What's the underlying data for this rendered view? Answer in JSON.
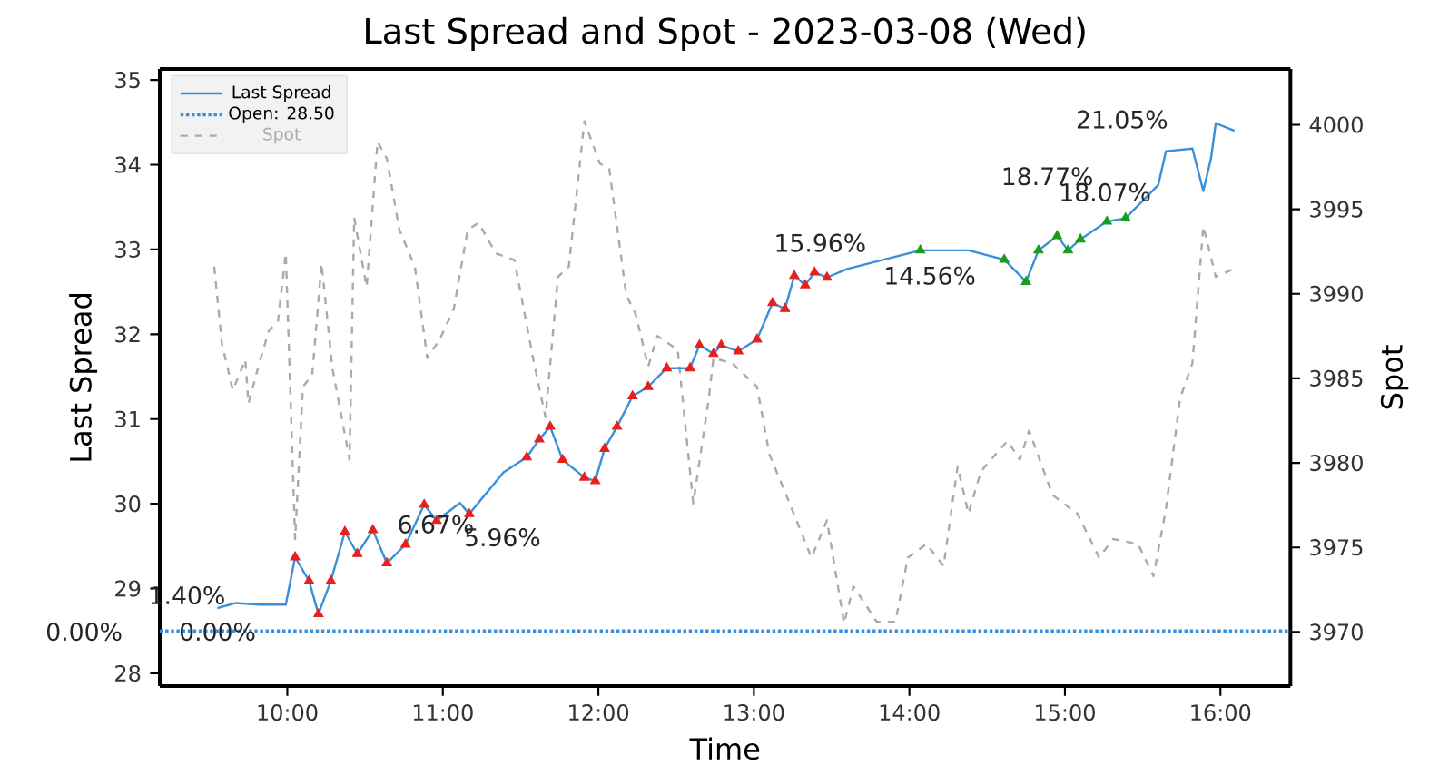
{
  "chart_data": {
    "type": "line",
    "title": "Last Spread and Spot - 2023-03-08 (Wed)",
    "xlabel": "Time",
    "ylabel": "Last Spread",
    "y2label": "Spot",
    "xlim": [
      9.18,
      16.45
    ],
    "xticks": [
      {
        "value": 10,
        "label": "10:00"
      },
      {
        "value": 11,
        "label": "11:00"
      },
      {
        "value": 12,
        "label": "12:00"
      },
      {
        "value": 13,
        "label": "13:00"
      },
      {
        "value": 14,
        "label": "14:00"
      },
      {
        "value": 15,
        "label": "15:00"
      },
      {
        "value": 16,
        "label": "16:00"
      }
    ],
    "ylim": [
      27.85,
      35.13
    ],
    "yticks": [
      28,
      29,
      30,
      31,
      32,
      33,
      34,
      35
    ],
    "y2lim": [
      3966.8,
      4003.3
    ],
    "y2ticks": [
      3970,
      3975,
      3980,
      3985,
      3990,
      3995,
      4000
    ],
    "legend": "top left",
    "grid": false,
    "series": [
      {
        "name": "Last Spread",
        "color": "#3a8fd9",
        "line_style": "solid",
        "x": [
          9.55,
          9.67,
          9.82,
          9.99,
          10.05,
          10.14,
          10.2,
          10.28,
          10.37,
          10.45,
          10.55,
          10.64,
          10.76,
          10.88,
          10.96,
          11.11,
          11.17,
          11.39,
          11.54,
          11.62,
          11.69,
          11.77,
          11.91,
          11.98,
          12.04,
          12.12,
          12.22,
          12.32,
          12.44,
          12.59,
          12.65,
          12.74,
          12.79,
          12.9,
          13.02,
          13.12,
          13.2,
          13.26,
          13.33,
          13.39,
          13.47,
          13.6,
          14.07,
          14.38,
          14.61,
          14.75,
          14.83,
          14.95,
          15.02,
          15.1,
          15.27,
          15.39,
          15.6,
          15.65,
          15.82,
          15.89,
          15.94,
          15.97,
          16.09
        ],
        "values": [
          28.77,
          28.83,
          28.81,
          28.81,
          29.37,
          29.09,
          28.7,
          29.09,
          29.67,
          29.41,
          29.69,
          29.3,
          29.52,
          29.99,
          29.8,
          30.01,
          29.88,
          30.37,
          30.55,
          30.76,
          30.91,
          30.52,
          30.31,
          30.27,
          30.65,
          30.91,
          31.27,
          31.38,
          31.6,
          31.6,
          31.87,
          31.77,
          31.87,
          31.8,
          31.94,
          32.37,
          32.3,
          32.69,
          32.58,
          32.73,
          32.67,
          32.77,
          32.99,
          32.99,
          32.88,
          32.62,
          32.99,
          33.16,
          32.99,
          33.12,
          33.33,
          33.37,
          33.76,
          34.16,
          34.19,
          33.69,
          34.08,
          34.49,
          34.4
        ]
      },
      {
        "type": "scatter",
        "marker": "triangle",
        "color": "#e8201c",
        "x": [
          10.05,
          10.14,
          10.2,
          10.28,
          10.37,
          10.45,
          10.55,
          10.64,
          10.76,
          10.88,
          10.96,
          11.17,
          11.54,
          11.62,
          11.69,
          11.77,
          11.91,
          11.98,
          12.04,
          12.12,
          12.22,
          12.32,
          12.44,
          12.59,
          12.65,
          12.74,
          12.79,
          12.9,
          13.02,
          13.12,
          13.2,
          13.26,
          13.33,
          13.39,
          13.47
        ],
        "values": [
          29.37,
          29.09,
          28.7,
          29.09,
          29.67,
          29.41,
          29.69,
          29.3,
          29.52,
          29.99,
          29.8,
          29.88,
          30.55,
          30.76,
          30.91,
          30.52,
          30.31,
          30.27,
          30.65,
          30.91,
          31.27,
          31.38,
          31.6,
          31.6,
          31.87,
          31.77,
          31.87,
          31.8,
          31.94,
          32.37,
          32.3,
          32.69,
          32.58,
          32.73,
          32.67
        ]
      },
      {
        "type": "scatter",
        "marker": "triangle",
        "color": "#1a9e1a",
        "x": [
          14.07,
          14.61,
          14.75,
          14.83,
          14.95,
          15.02,
          15.1,
          15.27,
          15.39
        ],
        "values": [
          32.99,
          32.88,
          32.62,
          32.99,
          33.16,
          32.99,
          33.12,
          33.33,
          33.37
        ]
      },
      {
        "name": "Spot",
        "type": "line",
        "axis": "y2",
        "color": "#aaaaaa",
        "line_style": "dashed",
        "x": [
          9.53,
          9.58,
          9.65,
          9.73,
          9.75,
          9.82,
          9.88,
          9.94,
          9.99,
          10.05,
          10.1,
          10.16,
          10.22,
          10.29,
          10.4,
          10.43,
          10.51,
          10.58,
          10.64,
          10.72,
          10.82,
          10.9,
          10.98,
          11.07,
          11.16,
          11.23,
          11.34,
          11.46,
          11.58,
          11.66,
          11.74,
          11.81,
          11.91,
          12.01,
          12.07,
          12.18,
          12.24,
          12.32,
          12.38,
          12.51,
          12.61,
          12.71,
          12.74,
          12.86,
          13.02,
          13.1,
          13.23,
          13.37,
          13.47,
          13.58,
          13.64,
          13.79,
          13.91,
          13.99,
          14.11,
          14.22,
          14.31,
          14.38,
          14.46,
          14.63,
          14.71,
          14.77,
          14.92,
          15.08,
          15.22,
          15.31,
          15.47,
          15.57,
          15.65,
          15.74,
          15.82,
          15.89,
          15.97,
          16.09
        ],
        "values": [
          3991.6,
          3987.0,
          3984.3,
          3986.1,
          3983.5,
          3985.9,
          3987.8,
          3988.4,
          3992.4,
          3975.5,
          3984.5,
          3985.2,
          3991.8,
          3985.6,
          3980.2,
          3994.5,
          3990.4,
          3999.0,
          3998.0,
          3993.8,
          3991.6,
          3986.2,
          3987.3,
          3989.1,
          3993.8,
          3994.2,
          3992.4,
          3992.0,
          3986.2,
          3982.7,
          3991.0,
          3991.6,
          4000.2,
          3997.7,
          3997.4,
          3989.9,
          3988.8,
          3985.7,
          3987.5,
          3986.7,
          3977.6,
          3983.8,
          3986.2,
          3985.9,
          3984.5,
          3980.5,
          3977.6,
          3974.4,
          3976.6,
          3970.5,
          3972.7,
          3970.6,
          3970.6,
          3974.4,
          3975.2,
          3973.9,
          3979.8,
          3977.0,
          3979.5,
          3981.3,
          3980.2,
          3981.9,
          3978.1,
          3977.0,
          3974.4,
          3975.5,
          3975.2,
          3973.3,
          3977.3,
          3983.8,
          3985.9,
          3994.0,
          3991.0,
          3991.5
        ]
      }
    ],
    "ref_lines": [
      {
        "axis": "y",
        "value": 28.5,
        "label": "Open: 28.50",
        "color": "#3a8fd9",
        "line_style": "dotted"
      }
    ],
    "annotations": [
      "1.40%",
      "0.00%",
      "0.00%",
      "6.67%",
      "5.96%",
      "15.96%",
      "14.56%",
      "18.77%",
      "18.07%",
      "21.05%"
    ]
  }
}
